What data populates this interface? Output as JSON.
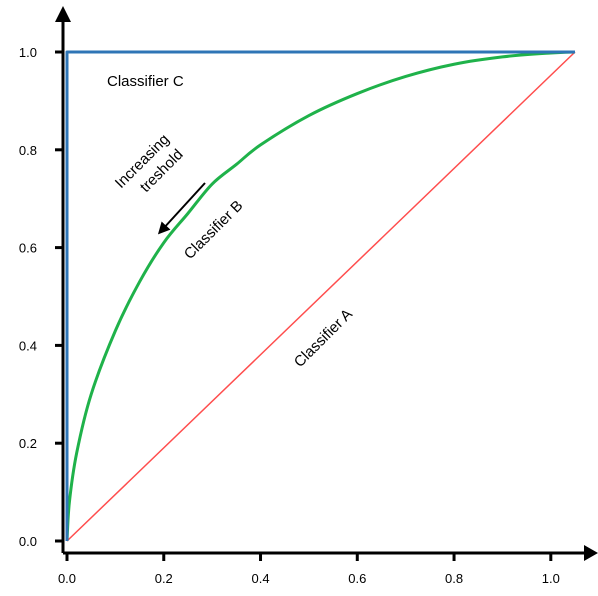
{
  "chart_data": {
    "type": "line",
    "title": "",
    "xlabel": "",
    "ylabel": "",
    "xlim": [
      0,
      1.05
    ],
    "ylim": [
      0,
      1.0
    ],
    "grid": false,
    "legend": "none",
    "x_ticks": [
      {
        "value": 0.0,
        "label": "0.0"
      },
      {
        "value": 0.2,
        "label": "0.2"
      },
      {
        "value": 0.4,
        "label": "0.4"
      },
      {
        "value": 0.6,
        "label": "0.6"
      },
      {
        "value": 0.8,
        "label": "0.8"
      },
      {
        "value": 1.0,
        "label": "1.0"
      }
    ],
    "y_ticks": [
      {
        "value": 0.0,
        "label": "0.0"
      },
      {
        "value": 0.2,
        "label": "0.2"
      },
      {
        "value": 0.4,
        "label": "0.4"
      },
      {
        "value": 0.6,
        "label": "0.6"
      },
      {
        "value": 0.8,
        "label": "0.8"
      },
      {
        "value": 1.0,
        "label": "1.0"
      }
    ],
    "series": [
      {
        "name": "Classifier A",
        "color": "#ff4d4d",
        "x": [
          0.0,
          1.05
        ],
        "y": [
          0.0,
          1.0
        ]
      },
      {
        "name": "Classifier B",
        "color": "#1fb24a",
        "x": [
          0.0,
          0.005,
          0.02,
          0.05,
          0.1,
          0.15,
          0.2,
          0.25,
          0.3,
          0.35,
          0.4,
          0.5,
          0.6,
          0.7,
          0.8,
          0.9,
          1.0,
          1.05
        ],
        "y": [
          0.0,
          0.08,
          0.18,
          0.3,
          0.43,
          0.53,
          0.61,
          0.67,
          0.73,
          0.77,
          0.81,
          0.87,
          0.915,
          0.95,
          0.975,
          0.99,
          0.998,
          1.0
        ]
      },
      {
        "name": "Classifier C",
        "color": "#2e75b6",
        "x": [
          0.0,
          0.0,
          1.05
        ],
        "y": [
          0.0,
          1.0,
          1.0
        ]
      }
    ],
    "annotations": [
      {
        "text": "Classifier C",
        "series": "Classifier C"
      },
      {
        "text": "Classifier B",
        "series": "Classifier B"
      },
      {
        "text": "Classifier A",
        "series": "Classifier A"
      },
      {
        "text": "Increasing",
        "type": "arrow-note"
      },
      {
        "text": "treshold",
        "type": "arrow-note"
      }
    ]
  }
}
